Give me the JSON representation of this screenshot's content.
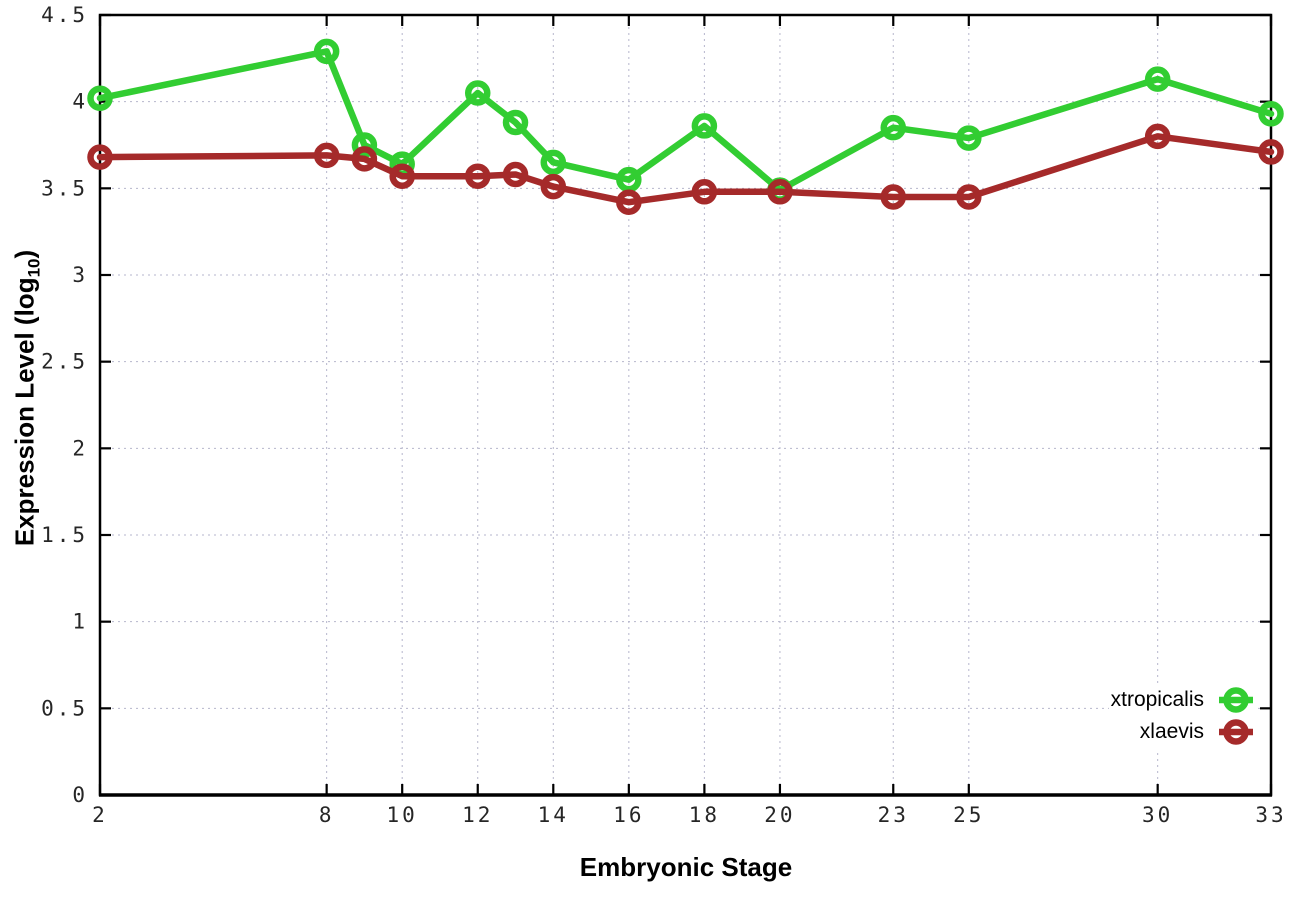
{
  "chart_data": {
    "type": "line",
    "x": [
      2,
      8,
      9,
      10,
      12,
      13,
      14,
      16,
      18,
      20,
      23,
      25,
      30,
      33
    ],
    "series": [
      {
        "name": "xtropicalis",
        "color": "#32cd32",
        "values": [
          4.02,
          4.29,
          3.75,
          3.64,
          4.05,
          3.88,
          3.65,
          3.55,
          3.86,
          3.49,
          3.85,
          3.79,
          4.13,
          3.93
        ]
      },
      {
        "name": "xlaevis",
        "color": "#a52a2a",
        "values": [
          3.68,
          3.69,
          3.67,
          3.57,
          3.57,
          3.58,
          3.51,
          3.42,
          3.48,
          3.48,
          3.45,
          3.45,
          3.8,
          3.71
        ]
      }
    ],
    "title": "",
    "xlabel": "Embryonic Stage",
    "ylabel": {
      "text": "Expression Level (log",
      "subscript": "10",
      "suffix": ")"
    },
    "xlim": [
      2,
      33
    ],
    "ylim": [
      0,
      4.5
    ],
    "xtick_values": [
      2,
      8,
      10,
      12,
      14,
      16,
      18,
      20,
      23,
      25,
      30,
      33
    ],
    "xtick_labels": [
      "2",
      "8",
      "10",
      "12",
      "14",
      "16",
      "18",
      "20",
      "23",
      "25",
      "30",
      "33"
    ],
    "ytick_values": [
      0,
      0.5,
      1,
      1.5,
      2,
      2.5,
      3,
      3.5,
      4,
      4.5
    ],
    "ytick_labels": [
      "0",
      "0.5",
      "1",
      "1.5",
      "2",
      "2.5",
      "3",
      "3.5",
      "4",
      "4.5"
    ],
    "grid": true,
    "legend_position": "bottom-right",
    "marker": "open-circle"
  }
}
